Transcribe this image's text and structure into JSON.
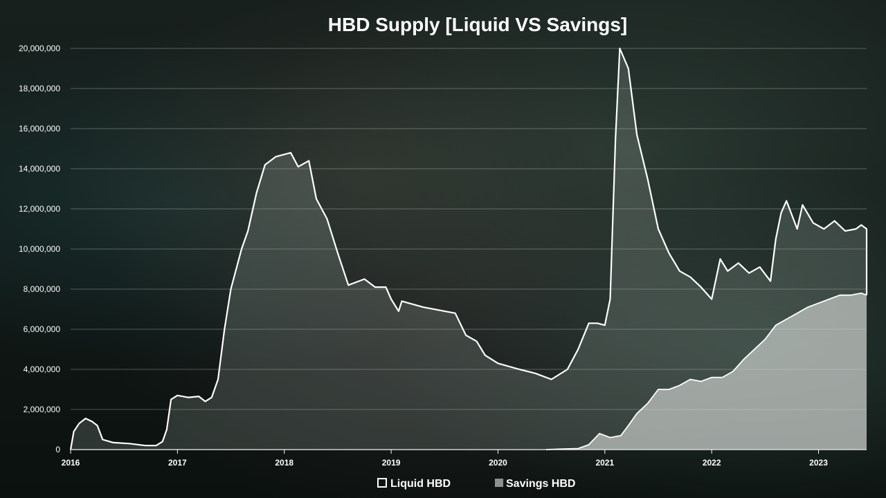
{
  "chart_data": {
    "type": "area",
    "title": "HBD Supply [Liquid VS Savings]",
    "xlabel": "",
    "ylabel": "",
    "ylim": [
      0,
      20000000
    ],
    "xlim": [
      2016.0,
      2023.45
    ],
    "y_ticks": [
      "0",
      "2,000,000",
      "4,000,000",
      "6,000,000",
      "8,000,000",
      "10,000,000",
      "12,000,000",
      "14,000,000",
      "16,000,000",
      "18,000,000",
      "20,000,000"
    ],
    "x_ticks": [
      "2016",
      "2017",
      "2018",
      "2019",
      "2020",
      "2021",
      "2022",
      "2023"
    ],
    "grid": true,
    "legend_position": "bottom-center",
    "series": [
      {
        "name": "Liquid HBD",
        "style": "white-outline-area",
        "color": "#ffffff",
        "points": [
          [
            2016.0,
            0
          ],
          [
            2016.03,
            900000
          ],
          [
            2016.08,
            1300000
          ],
          [
            2016.14,
            1550000
          ],
          [
            2016.2,
            1400000
          ],
          [
            2016.25,
            1200000
          ],
          [
            2016.3,
            500000
          ],
          [
            2016.4,
            350000
          ],
          [
            2016.55,
            300000
          ],
          [
            2016.7,
            200000
          ],
          [
            2016.8,
            200000
          ],
          [
            2016.86,
            400000
          ],
          [
            2016.9,
            1000000
          ],
          [
            2016.94,
            2500000
          ],
          [
            2017.0,
            2700000
          ],
          [
            2017.1,
            2600000
          ],
          [
            2017.2,
            2650000
          ],
          [
            2017.26,
            2400000
          ],
          [
            2017.32,
            2600000
          ],
          [
            2017.38,
            3500000
          ],
          [
            2017.44,
            6000000
          ],
          [
            2017.5,
            8000000
          ],
          [
            2017.6,
            10000000
          ],
          [
            2017.66,
            10900000
          ],
          [
            2017.74,
            12800000
          ],
          [
            2017.82,
            14200000
          ],
          [
            2017.92,
            14600000
          ],
          [
            2018.06,
            14800000
          ],
          [
            2018.13,
            14100000
          ],
          [
            2018.23,
            14400000
          ],
          [
            2018.3,
            12500000
          ],
          [
            2018.4,
            11500000
          ],
          [
            2018.5,
            9800000
          ],
          [
            2018.6,
            8200000
          ],
          [
            2018.75,
            8500000
          ],
          [
            2018.85,
            8100000
          ],
          [
            2018.95,
            8100000
          ],
          [
            2019.0,
            7500000
          ],
          [
            2019.07,
            6900000
          ],
          [
            2019.1,
            7400000
          ],
          [
            2019.3,
            7100000
          ],
          [
            2019.5,
            6900000
          ],
          [
            2019.6,
            6800000
          ],
          [
            2019.7,
            5700000
          ],
          [
            2019.8,
            5400000
          ],
          [
            2019.88,
            4700000
          ],
          [
            2020.0,
            4300000
          ],
          [
            2020.2,
            4000000
          ],
          [
            2020.35,
            3800000
          ],
          [
            2020.5,
            3500000
          ],
          [
            2020.65,
            4000000
          ],
          [
            2020.75,
            5000000
          ],
          [
            2020.85,
            6300000
          ],
          [
            2020.93,
            6300000
          ],
          [
            2021.0,
            6200000
          ],
          [
            2021.05,
            7500000
          ],
          [
            2021.1,
            15500000
          ],
          [
            2021.14,
            20800000
          ],
          [
            2021.22,
            19000000
          ],
          [
            2021.3,
            15700000
          ],
          [
            2021.4,
            13500000
          ],
          [
            2021.5,
            11000000
          ],
          [
            2021.6,
            9800000
          ],
          [
            2021.7,
            8900000
          ],
          [
            2021.8,
            8600000
          ],
          [
            2021.9,
            8100000
          ],
          [
            2022.0,
            7500000
          ],
          [
            2022.08,
            9500000
          ],
          [
            2022.15,
            8900000
          ],
          [
            2022.25,
            9300000
          ],
          [
            2022.35,
            8800000
          ],
          [
            2022.45,
            9100000
          ],
          [
            2022.55,
            8400000
          ],
          [
            2022.6,
            10500000
          ],
          [
            2022.65,
            11800000
          ],
          [
            2022.7,
            12400000
          ],
          [
            2022.8,
            11000000
          ],
          [
            2022.85,
            12200000
          ],
          [
            2022.95,
            11300000
          ],
          [
            2023.05,
            11000000
          ],
          [
            2023.15,
            11400000
          ],
          [
            2023.25,
            10900000
          ],
          [
            2023.35,
            11000000
          ],
          [
            2023.4,
            11200000
          ],
          [
            2023.45,
            11000000
          ],
          [
            2023.45,
            7700000
          ]
        ]
      },
      {
        "name": "Savings HBD",
        "style": "light-filled-area",
        "color": "#d9dbd9",
        "points": [
          [
            2020.45,
            0
          ],
          [
            2020.6,
            30000
          ],
          [
            2020.75,
            50000
          ],
          [
            2020.85,
            250000
          ],
          [
            2020.95,
            800000
          ],
          [
            2021.05,
            600000
          ],
          [
            2021.15,
            700000
          ],
          [
            2021.22,
            1200000
          ],
          [
            2021.3,
            1800000
          ],
          [
            2021.4,
            2300000
          ],
          [
            2021.5,
            3000000
          ],
          [
            2021.6,
            3000000
          ],
          [
            2021.7,
            3200000
          ],
          [
            2021.8,
            3500000
          ],
          [
            2021.9,
            3400000
          ],
          [
            2022.0,
            3600000
          ],
          [
            2022.1,
            3600000
          ],
          [
            2022.2,
            3900000
          ],
          [
            2022.3,
            4500000
          ],
          [
            2022.4,
            5000000
          ],
          [
            2022.5,
            5500000
          ],
          [
            2022.6,
            6200000
          ],
          [
            2022.7,
            6500000
          ],
          [
            2022.8,
            6800000
          ],
          [
            2022.9,
            7100000
          ],
          [
            2023.0,
            7300000
          ],
          [
            2023.1,
            7500000
          ],
          [
            2023.2,
            7700000
          ],
          [
            2023.3,
            7700000
          ],
          [
            2023.4,
            7800000
          ],
          [
            2023.45,
            7700000
          ]
        ]
      }
    ]
  }
}
